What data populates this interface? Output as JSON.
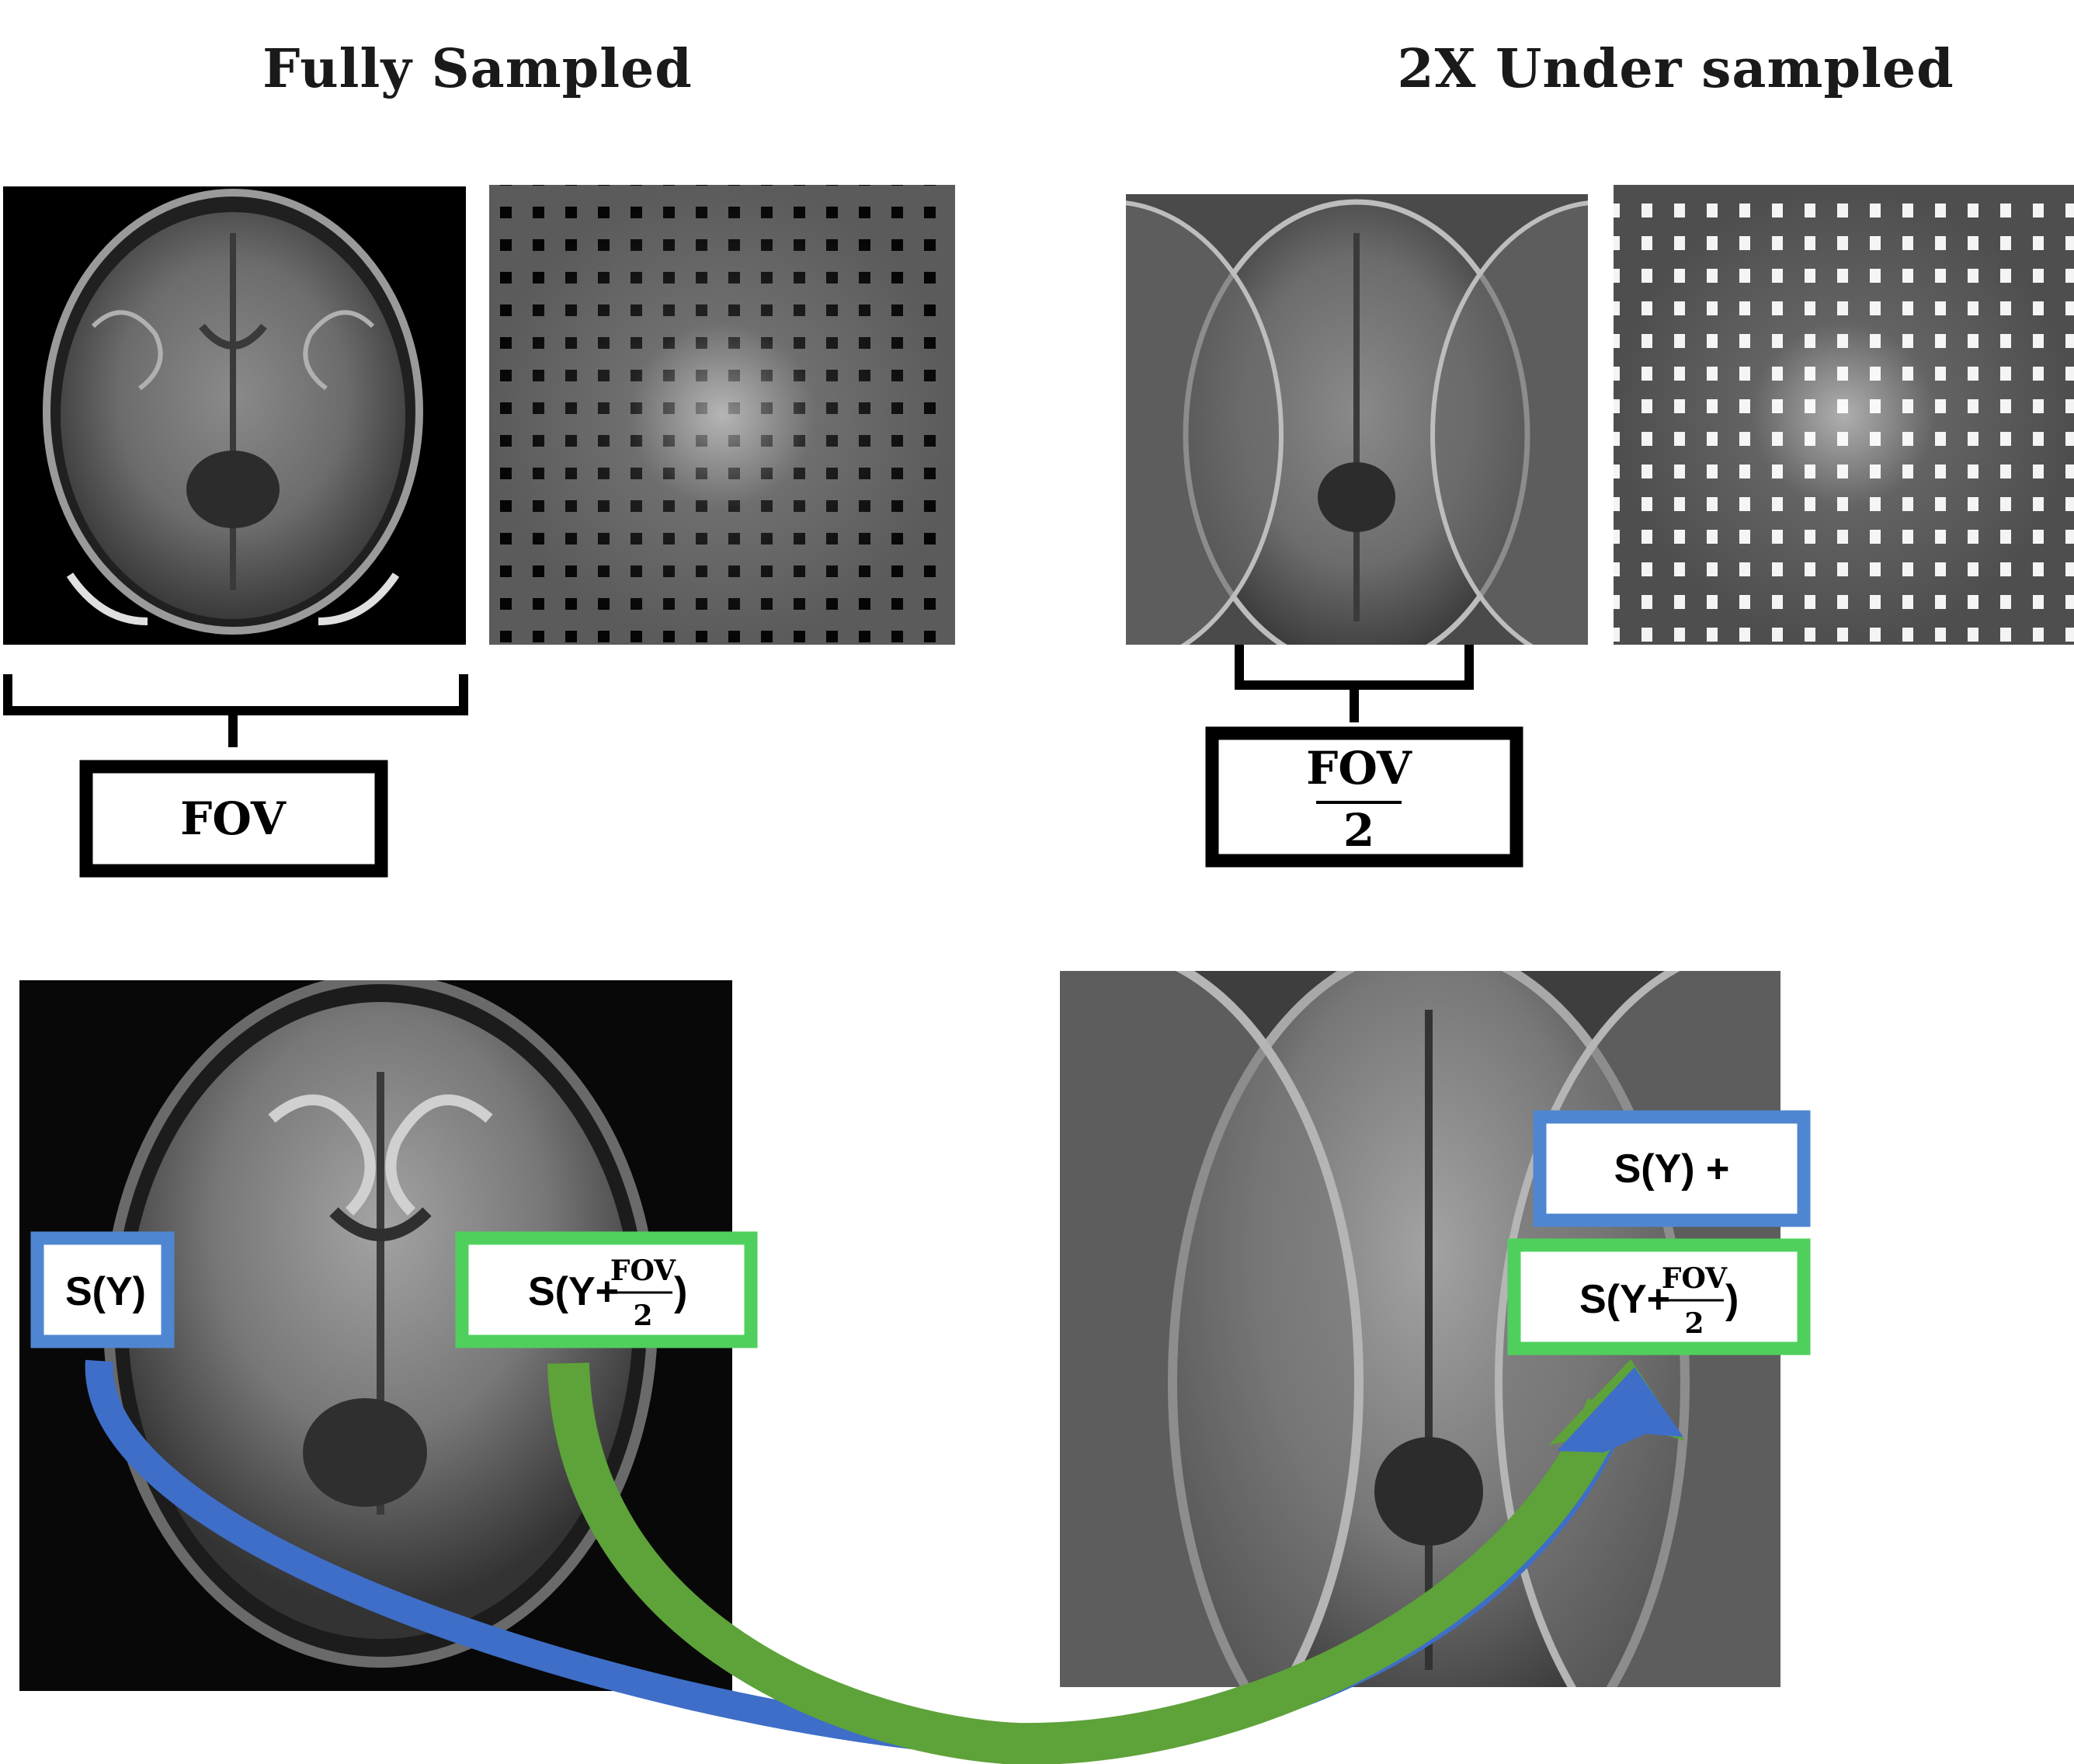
{
  "titles": {
    "fully_sampled": "Fully Sampled",
    "under_sampled": "2X Under sampled"
  },
  "fov_labels": {
    "fov": "FOV",
    "half_numerator": "FOV",
    "half_denominator": "2"
  },
  "signal_labels": {
    "s_y": "S(Y)",
    "s_y_shift_prefix": "S(Y+",
    "s_y_shift_numerator": "FOV",
    "s_y_shift_denominator": "2",
    "s_y_shift_suffix": ")",
    "s_y_plus": "S(Y) +",
    "sum_prefix": "S(Y+",
    "sum_numerator": "FOV",
    "sum_denominator": "2",
    "sum_suffix": ")"
  },
  "colors": {
    "blue": "#4f86d1",
    "green": "#4fd05d",
    "arrow_blue": "#3e6ec8",
    "arrow_green": "#5ea23a",
    "frame": "#000000"
  }
}
